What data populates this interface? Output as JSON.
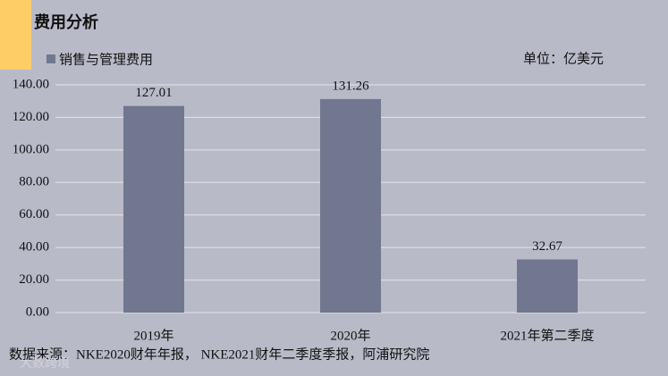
{
  "chart_data": {
    "type": "bar",
    "title": "费用分析",
    "unit": "单位：亿美元",
    "source": "数据来源：NKE2020财年年报， NKE2021财年二季度季报，阿浦研究院",
    "watermark": "大数跨境",
    "categories": [
      "2019年",
      "2020年",
      "2021年第二季度"
    ],
    "series": [
      {
        "name": "销售与管理费用",
        "color": "#71778f",
        "values": [
          127.01,
          131.26,
          32.67
        ]
      }
    ],
    "ylim": [
      0,
      140
    ],
    "yticks": [
      {
        "value": 0,
        "label": "0.00"
      },
      {
        "value": 20,
        "label": "20.00"
      },
      {
        "value": 40,
        "label": "40.00"
      },
      {
        "value": 60,
        "label": "60.00"
      },
      {
        "value": 80,
        "label": "80.00"
      },
      {
        "value": 100,
        "label": "100.00"
      },
      {
        "value": 120,
        "label": "120.00"
      },
      {
        "value": 140,
        "label": "140.00"
      }
    ],
    "grid": true
  }
}
